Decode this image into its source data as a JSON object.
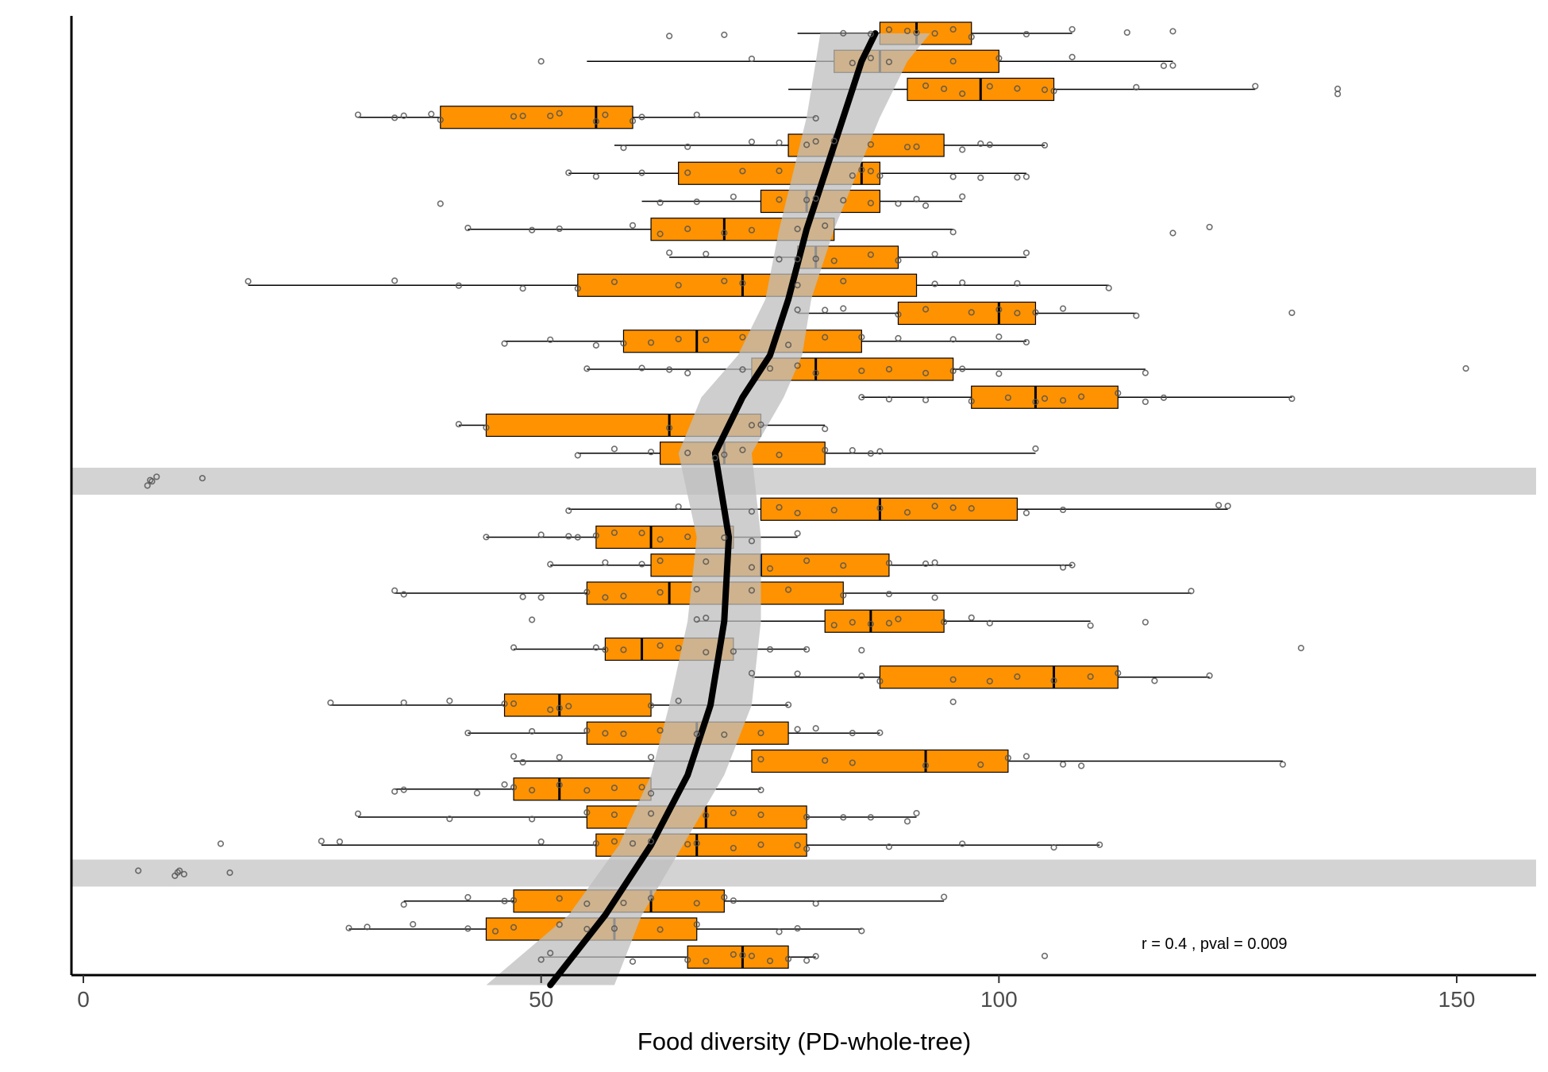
{
  "chart_data": {
    "type": "boxplot",
    "orientation": "horizontal",
    "xlabel": "Food diversity (PD-whole-tree)",
    "ylabel": "",
    "xlim": [
      -1.5,
      158
    ],
    "xticks": [
      0,
      50,
      100,
      150
    ],
    "grid": false,
    "legend": "none",
    "annotation": "r = 0.4 , pval = 0.009",
    "colors": {
      "box_fill": "#FF9200",
      "trend_line": "#000000",
      "ci_band": "#BDBDBD",
      "highlight_band": "#D3D3D3"
    },
    "rows": [
      {
        "min": 78,
        "q1": 87,
        "median": 91,
        "q3": 97,
        "max": 108,
        "points": [
          83,
          86,
          88,
          90,
          91,
          93,
          95,
          97,
          103,
          114,
          119,
          64,
          70,
          108
        ]
      },
      {
        "min": 55,
        "q1": 82,
        "median": 87,
        "q3": 100,
        "max": 119,
        "points": [
          50,
          73,
          84,
          86,
          88,
          95,
          100,
          108,
          119,
          118
        ]
      },
      {
        "min": 77,
        "q1": 90,
        "median": 98,
        "q3": 106,
        "max": 128,
        "points": [
          92,
          94,
          96,
          99,
          102,
          105,
          106,
          115,
          128,
          137,
          137
        ]
      },
      {
        "min": 30,
        "q1": 39,
        "median": 56,
        "q3": 60,
        "max": 80,
        "points": [
          30,
          34,
          35,
          38,
          39,
          48,
          51,
          52,
          56,
          57,
          60,
          61,
          67,
          80,
          47
        ]
      },
      {
        "min": 58,
        "q1": 77,
        "median": 82,
        "q3": 94,
        "max": 105,
        "points": [
          59,
          66,
          73,
          76,
          79,
          80,
          82,
          86,
          90,
          91,
          96,
          98,
          99,
          105
        ]
      },
      {
        "min": 53,
        "q1": 65,
        "median": 85,
        "q3": 87,
        "max": 103,
        "points": [
          53,
          56,
          61,
          66,
          72,
          76,
          84,
          85,
          86,
          87,
          95,
          98,
          102,
          103
        ]
      },
      {
        "min": 61,
        "q1": 74,
        "median": 79,
        "q3": 87,
        "max": 96,
        "points": [
          39,
          63,
          67,
          71,
          76,
          79,
          80,
          83,
          86,
          89,
          91,
          92,
          96
        ]
      },
      {
        "min": 42,
        "q1": 62,
        "median": 70,
        "q3": 82,
        "max": 95,
        "points": [
          42,
          49,
          52,
          60,
          63,
          66,
          70,
          73,
          78,
          81,
          95,
          119,
          123
        ]
      },
      {
        "min": 64,
        "q1": 78,
        "median": 80,
        "q3": 89,
        "max": 103,
        "points": [
          64,
          68,
          76,
          78,
          80,
          82,
          86,
          89,
          93,
          103
        ]
      },
      {
        "min": 18,
        "q1": 54,
        "median": 72,
        "q3": 91,
        "max": 112,
        "points": [
          18,
          34,
          41,
          48,
          54,
          58,
          65,
          70,
          72,
          78,
          83,
          93,
          96,
          102,
          112
        ]
      },
      {
        "min": 78,
        "q1": 89,
        "median": 100,
        "q3": 104,
        "max": 115,
        "points": [
          78,
          81,
          83,
          89,
          92,
          97,
          100,
          102,
          104,
          107,
          115,
          132
        ]
      },
      {
        "min": 46,
        "q1": 59,
        "median": 67,
        "q3": 85,
        "max": 103,
        "points": [
          46,
          51,
          56,
          59,
          62,
          65,
          68,
          72,
          77,
          81,
          85,
          89,
          95,
          100,
          103
        ]
      },
      {
        "min": 55,
        "q1": 73,
        "median": 80,
        "q3": 95,
        "max": 116,
        "points": [
          55,
          61,
          64,
          66,
          72,
          75,
          78,
          80,
          85,
          88,
          92,
          95,
          96,
          100,
          116,
          151
        ]
      },
      {
        "min": 85,
        "q1": 97,
        "median": 104,
        "q3": 113,
        "max": 132,
        "points": [
          85,
          88,
          92,
          97,
          101,
          104,
          105,
          107,
          109,
          113,
          116,
          118,
          132
        ]
      },
      {
        "min": 41,
        "q1": 44,
        "median": 64,
        "q3": 74,
        "max": 81,
        "points": [
          41,
          44,
          64,
          73,
          74,
          81
        ]
      },
      {
        "min": 54,
        "q1": 63,
        "median": 70,
        "q3": 81,
        "max": 104,
        "points": [
          54,
          58,
          62,
          66,
          69,
          70,
          72,
          76,
          81,
          84,
          86,
          87,
          104
        ]
      },
      {
        "min": 7.5,
        "q1": 7.5,
        "median": 7.5,
        "q3": 7.5,
        "max": 7.5,
        "highlight": true,
        "points": [
          7,
          7.5,
          8,
          7.3,
          13
        ]
      },
      {
        "min": 53,
        "q1": 74,
        "median": 87,
        "q3": 102,
        "max": 125,
        "points": [
          53,
          65,
          73,
          76,
          78,
          82,
          87,
          90,
          93,
          95,
          97,
          103,
          107,
          124,
          125
        ]
      },
      {
        "min": 44,
        "q1": 56,
        "median": 62,
        "q3": 71,
        "max": 78,
        "points": [
          44,
          50,
          53,
          54,
          56,
          58,
          61,
          63,
          66,
          70,
          73,
          78
        ]
      },
      {
        "min": 51,
        "q1": 62,
        "median": 74,
        "q3": 88,
        "max": 108,
        "points": [
          51,
          57,
          61,
          63,
          68,
          73,
          75,
          79,
          83,
          88,
          92,
          93,
          107,
          108
        ]
      },
      {
        "min": 34,
        "q1": 55,
        "median": 64,
        "q3": 83,
        "max": 121,
        "points": [
          34,
          35,
          48,
          50,
          55,
          57,
          59,
          63,
          67,
          73,
          77,
          83,
          88,
          93,
          121
        ]
      },
      {
        "min": 67,
        "q1": 81,
        "median": 86,
        "q3": 94,
        "max": 110,
        "points": [
          49,
          67,
          68,
          82,
          84,
          86,
          88,
          89,
          94,
          97,
          99,
          110,
          116
        ]
      },
      {
        "min": 47,
        "q1": 57,
        "median": 61,
        "q3": 71,
        "max": 79,
        "points": [
          47,
          56,
          57,
          59,
          63,
          65,
          68,
          71,
          75,
          79,
          85,
          133
        ]
      },
      {
        "min": 73,
        "q1": 87,
        "median": 106,
        "q3": 113,
        "max": 123,
        "points": [
          73,
          78,
          85,
          87,
          95,
          99,
          102,
          106,
          110,
          113,
          117,
          123
        ]
      },
      {
        "min": 27,
        "q1": 46,
        "median": 52,
        "q3": 62,
        "max": 77,
        "points": [
          27,
          35,
          40,
          46,
          47,
          51,
          52,
          53,
          62,
          65,
          77,
          95
        ]
      },
      {
        "min": 42,
        "q1": 55,
        "median": 67,
        "q3": 77,
        "max": 87,
        "points": [
          42,
          49,
          55,
          57,
          59,
          63,
          67,
          70,
          74,
          78,
          80,
          84,
          87
        ]
      },
      {
        "min": 47,
        "q1": 73,
        "median": 92,
        "q3": 101,
        "max": 131,
        "points": [
          47,
          48,
          52,
          62,
          74,
          81,
          84,
          92,
          98,
          101,
          103,
          107,
          109,
          131
        ]
      },
      {
        "min": 34,
        "q1": 47,
        "median": 52,
        "q3": 62,
        "max": 74,
        "points": [
          34,
          35,
          43,
          46,
          47,
          49,
          52,
          55,
          58,
          61,
          62,
          74
        ]
      },
      {
        "min": 30,
        "q1": 55,
        "median": 68,
        "q3": 79,
        "max": 91,
        "points": [
          30,
          40,
          49,
          55,
          58,
          62,
          68,
          71,
          74,
          79,
          83,
          86,
          90,
          91
        ]
      },
      {
        "min": 26,
        "q1": 56,
        "median": 67,
        "q3": 79,
        "max": 111,
        "points": [
          15,
          26,
          28,
          50,
          56,
          58,
          60,
          62,
          66,
          67,
          71,
          74,
          78,
          79,
          88,
          96,
          106,
          111
        ]
      },
      {
        "min": 10.5,
        "q1": 10.5,
        "median": 10.5,
        "q3": 10.5,
        "max": 10.5,
        "highlight": true,
        "points": [
          6,
          10,
          10.5,
          11,
          10.3,
          16
        ]
      },
      {
        "min": 35,
        "q1": 47,
        "median": 62,
        "q3": 70,
        "max": 94,
        "points": [
          35,
          42,
          46,
          47,
          52,
          55,
          59,
          62,
          67,
          70,
          71,
          80,
          94
        ]
      },
      {
        "min": 29,
        "q1": 44,
        "median": 58,
        "q3": 67,
        "max": 85,
        "points": [
          29,
          31,
          36,
          42,
          45,
          47,
          52,
          55,
          58,
          63,
          67,
          76,
          78,
          85
        ]
      },
      {
        "min": 50,
        "q1": 66,
        "median": 72,
        "q3": 77,
        "max": 80,
        "points": [
          50,
          51,
          60,
          66,
          68,
          71,
          72,
          73,
          75,
          77,
          79,
          80,
          105
        ]
      }
    ],
    "trend": {
      "points": [
        [
          51,
          34
        ],
        [
          57,
          31.5
        ],
        [
          62,
          29
        ],
        [
          66,
          26.5
        ],
        [
          68.5,
          24
        ],
        [
          70,
          21
        ],
        [
          70.5,
          18
        ],
        [
          69,
          15
        ],
        [
          72,
          13
        ],
        [
          75,
          11.5
        ],
        [
          77,
          9.5
        ],
        [
          79,
          7
        ],
        [
          81,
          5
        ],
        [
          83,
          3
        ],
        [
          85,
          1
        ],
        [
          86.5,
          0
        ]
      ],
      "ci_halfwidth": [
        7,
        4,
        3.5,
        4,
        4.5,
        4,
        3.5,
        4,
        4.5,
        3.5,
        2.5,
        3,
        3.5,
        4,
        5,
        6
      ]
    }
  }
}
